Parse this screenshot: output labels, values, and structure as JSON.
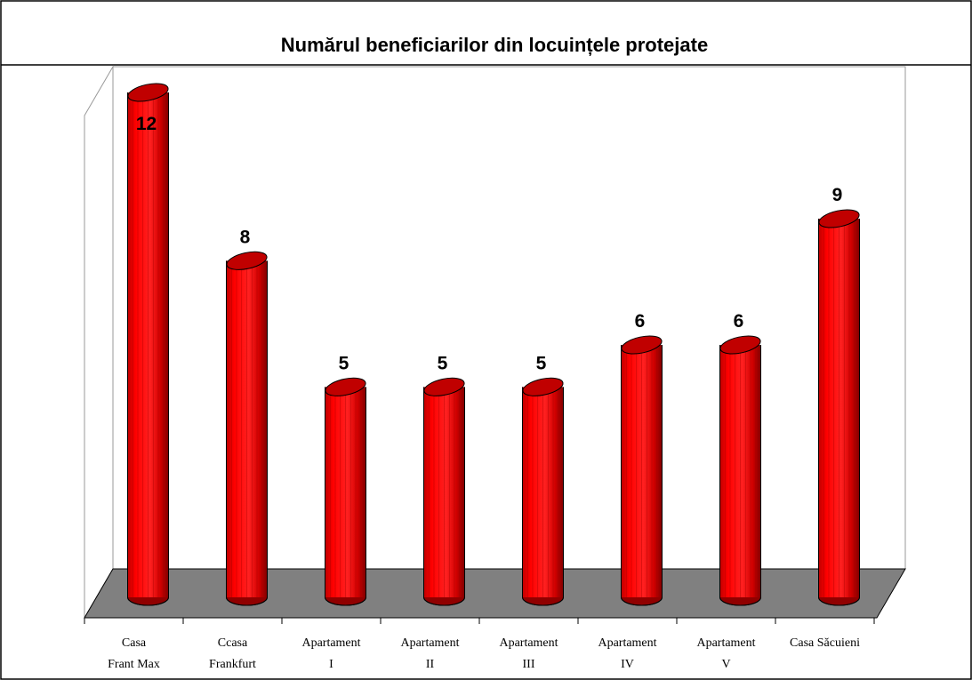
{
  "chart_data": {
    "type": "bar3d",
    "title": "Numărul beneficiarilor din locuințele protejate",
    "categories": [
      [
        "Casa",
        "Frant Max"
      ],
      [
        "Ccasa",
        "Frankfurt"
      ],
      [
        "Apartament",
        "I"
      ],
      [
        "Apartament",
        "II"
      ],
      [
        "Apartament",
        "III"
      ],
      [
        "Apartament",
        "IV"
      ],
      [
        "Apartament",
        "V"
      ],
      [
        "Casa Săcuieni"
      ]
    ],
    "values": [
      12,
      8,
      5,
      5,
      5,
      6,
      6,
      9
    ],
    "color": "#ff0000",
    "ylim": [
      0,
      12
    ]
  }
}
